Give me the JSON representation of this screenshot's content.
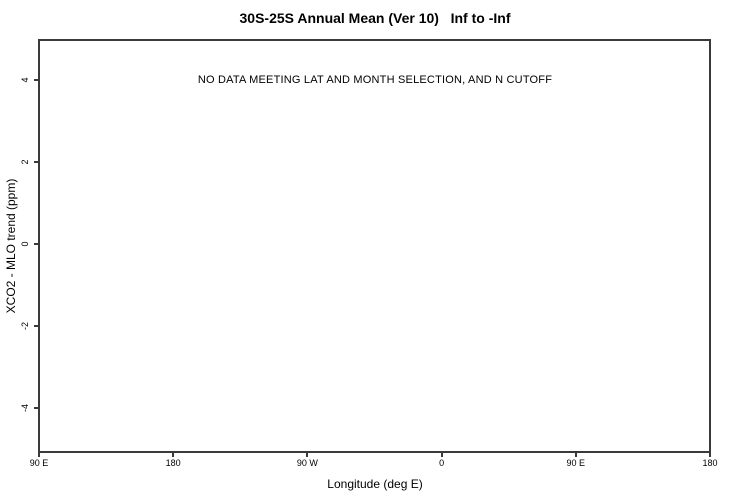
{
  "figure": {
    "background_color": "#ffffff",
    "frame_color": "#3a3a3a",
    "text_color": "#000000"
  },
  "chart_data": {
    "type": "scatter",
    "title": "30S-25S Annual Mean (Ver 10)   Inf to -Inf",
    "no_data_message": "NO DATA MEETING LAT AND MONTH SELECTION, AND N CUTOFF",
    "xlabel": "Longitude (deg E)",
    "ylabel": "XCO2 - MLO trend (ppm)",
    "x_tick_labels": [
      "90 E",
      "180",
      "90 W",
      "0",
      "90 E",
      "180"
    ],
    "y_tick_labels": [
      "4",
      "2",
      "0",
      "-2",
      "-4"
    ],
    "ylim": [
      -5,
      5
    ],
    "grid": false,
    "legend": null,
    "series": []
  }
}
